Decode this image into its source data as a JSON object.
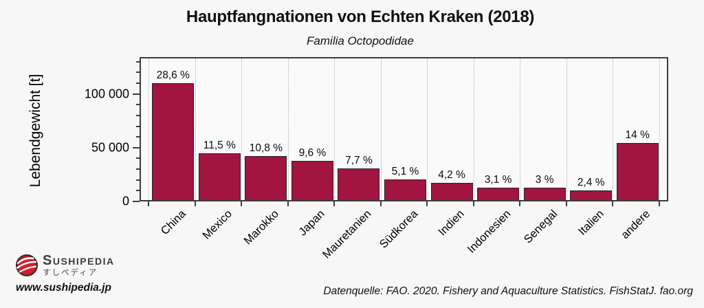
{
  "header": {
    "title": "Hauptfangnationen von Echten Kraken (2018)",
    "subtitle": "Familia Octopodidae"
  },
  "chart_data": {
    "type": "bar",
    "title": "Hauptfangnationen von Echten Kraken (2018)",
    "subtitle": "Familia Octopodidae",
    "xlabel": "",
    "ylabel": "Lebendgewicht [t]",
    "categories": [
      "China",
      "Mexico",
      "Marokko",
      "Japan",
      "Mauretanien",
      "Südkorea",
      "Indien",
      "Indonesien",
      "Senegal",
      "Italien",
      "andere"
    ],
    "series": [
      {
        "name": "Lebendgewicht [t]",
        "values": [
          108900,
          43700,
          41000,
          36500,
          29300,
          19400,
          16000,
          11800,
          11400,
          9100,
          53200
        ]
      }
    ],
    "percent_labels": [
      "28,6 %",
      "11,5 %",
      "10,8 %",
      "9,6 %",
      "7,7 %",
      "5,1 %",
      "4,2 %",
      "3,1 %",
      "3 %",
      "2,4 %",
      "14 %"
    ],
    "ylim": [
      0,
      133000
    ],
    "y_major_ticks": [
      {
        "value": 0,
        "label": "0"
      },
      {
        "value": 50000,
        "label": "50 000"
      },
      {
        "value": 100000,
        "label": "100 000"
      }
    ],
    "y_minor_tick_step": 10000,
    "grid": "vertical-dotted",
    "legend": "none",
    "bar_color": "#a11540",
    "bar_border_color": "#23232e"
  },
  "footer": {
    "brand": "Sushipedia",
    "brand_jp": "すしペディア",
    "website": "www.sushipedia.jp",
    "source": "Datenquelle: FAO. 2020. Fishery and Aquaculture Statistics. FishStatJ. fao.org"
  }
}
